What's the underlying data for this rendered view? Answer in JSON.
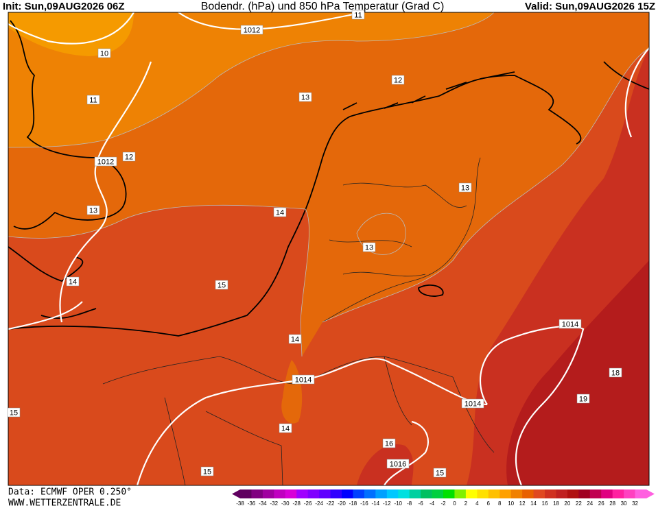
{
  "header": {
    "init": "Init: Sun,09AUG2026 06Z",
    "title": "Bodendr. (hPa) und 850 hPa Temperatur (Grad C)",
    "valid": "Valid: Sun,09AUG2026 15Z"
  },
  "contour_labels": [
    "11",
    "10",
    "1012",
    "12",
    "11",
    "13",
    "1012",
    "12",
    "13",
    "14",
    "13",
    "13",
    "14",
    "15",
    "14",
    "1014",
    "1014",
    "1014",
    "14",
    "15",
    "18",
    "19",
    "16",
    "1016",
    "15",
    "15"
  ],
  "footer": {
    "data": "Data: ECMWF OPER 0.250°",
    "site": "WWW.WETTERZENTRALE.DE"
  },
  "colorbar": {
    "labels": [
      -38,
      -36,
      -34,
      -32,
      -30,
      -28,
      -26,
      -24,
      -22,
      -20,
      -18,
      -16,
      -14,
      -12,
      -10,
      -8,
      -6,
      -4,
      -2,
      0,
      2,
      4,
      6,
      8,
      10,
      12,
      14,
      16,
      18,
      20,
      22,
      24,
      26,
      28,
      30,
      32
    ],
    "colors": [
      "#600060",
      "#800080",
      "#a000a0",
      "#c000c0",
      "#d800d8",
      "#a000ff",
      "#8000ff",
      "#6000ff",
      "#3000ff",
      "#0000ff",
      "#0040ff",
      "#0070ff",
      "#00a0ff",
      "#00c8ff",
      "#00e0e0",
      "#00d0a0",
      "#00c060",
      "#00d040",
      "#00e000",
      "#80f000",
      "#ffff00",
      "#ffe000",
      "#ffc000",
      "#ffa000",
      "#f08000",
      "#e86000",
      "#e04820",
      "#d03020",
      "#c02020",
      "#b01010",
      "#a00020",
      "#c00050",
      "#e00080",
      "#ff20a0",
      "#ff40c0",
      "#ff60e0"
    ]
  }
}
